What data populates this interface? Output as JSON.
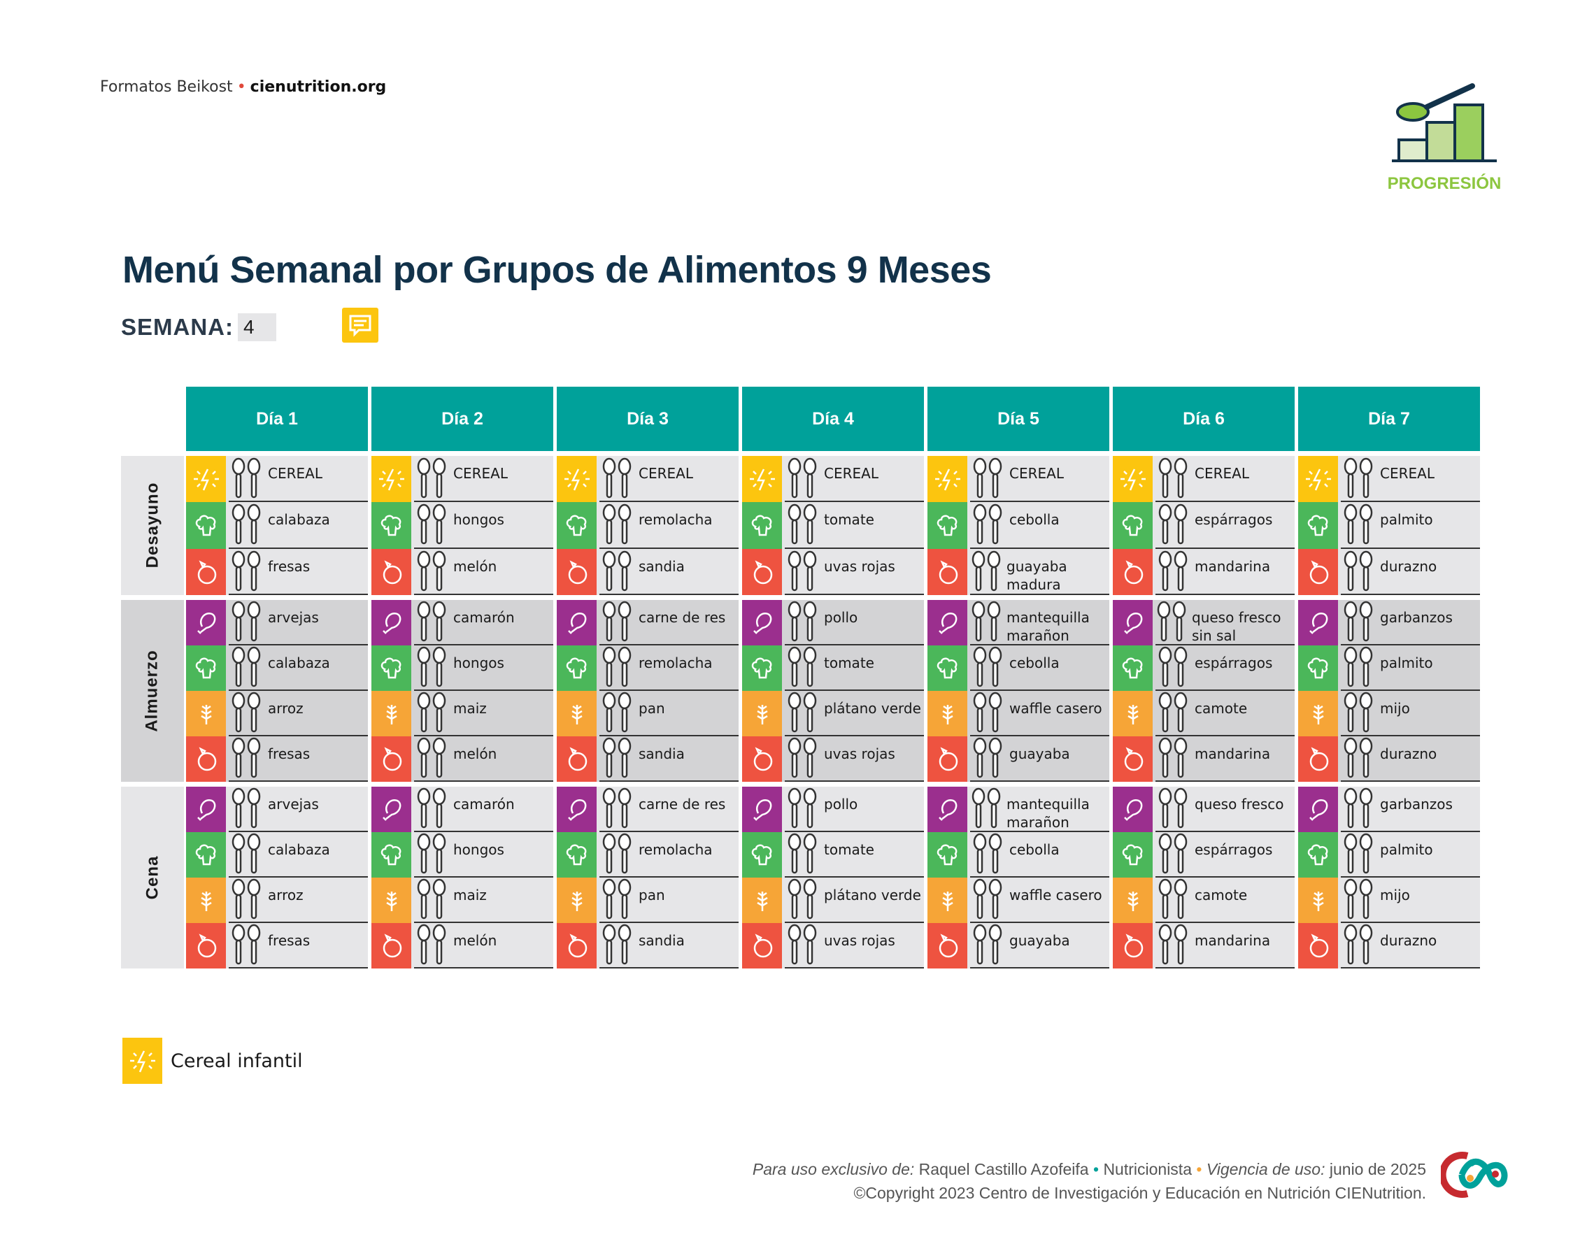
{
  "header": {
    "brand": "Formatos Beikost",
    "site": "cienutrition.org",
    "progression_label": "PROGRESIÓN"
  },
  "title": "Menú Semanal por Grupos de Alimentos 9 Meses",
  "semana": {
    "label": "SEMANA:",
    "value": "4"
  },
  "colors": {
    "header": "#00a19a",
    "cereal": "#fcc50f",
    "vegetable": "#4bb75a",
    "fruit": "#ee5340",
    "protein": "#9b2f8e",
    "grain": "#f6a537"
  },
  "days": [
    "Día 1",
    "Día 2",
    "Día 3",
    "Día 4",
    "Día 5",
    "Día 6",
    "Día 7"
  ],
  "meals": [
    {
      "name": "Desayuno",
      "bg": "#e6e6e8",
      "rows": [
        {
          "group": "cereal",
          "icon": "lightning-icon",
          "items": [
            "CEREAL",
            "CEREAL",
            "CEREAL",
            "CEREAL",
            "CEREAL",
            "CEREAL",
            "CEREAL"
          ]
        },
        {
          "group": "vegetable",
          "icon": "broccoli-icon",
          "items": [
            "calabaza",
            "hongos",
            "remolacha",
            "tomate",
            "cebolla",
            "espárragos",
            "palmito"
          ]
        },
        {
          "group": "fruit",
          "icon": "apple-icon",
          "items": [
            "fresas",
            "melón",
            "sandia",
            "uvas rojas",
            "guayaba madura",
            "mandarina",
            "durazno"
          ]
        }
      ]
    },
    {
      "name": "Almuerzo",
      "bg": "#d3d3d5",
      "rows": [
        {
          "group": "protein",
          "icon": "drumstick-icon",
          "items": [
            "arvejas",
            "camarón",
            "carne de res",
            "pollo",
            "mantequilla marañon",
            "queso fresco sin sal",
            "garbanzos"
          ]
        },
        {
          "group": "vegetable",
          "icon": "broccoli-icon",
          "items": [
            "calabaza",
            "hongos",
            "remolacha",
            "tomate",
            "cebolla",
            "espárragos",
            "palmito"
          ]
        },
        {
          "group": "grain",
          "icon": "wheat-icon",
          "items": [
            "arroz",
            "maiz",
            "pan",
            "plátano verde",
            "waffle casero",
            "camote",
            "mijo"
          ]
        },
        {
          "group": "fruit",
          "icon": "apple-icon",
          "items": [
            "fresas",
            "melón",
            "sandia",
            "uvas rojas",
            "guayaba",
            "mandarina",
            "durazno"
          ]
        }
      ]
    },
    {
      "name": "Cena",
      "bg": "#e6e6e8",
      "rows": [
        {
          "group": "protein",
          "icon": "drumstick-icon",
          "items": [
            "arvejas",
            "camarón",
            "carne de res",
            "pollo",
            "mantequilla marañon",
            "queso fresco",
            "garbanzos"
          ]
        },
        {
          "group": "vegetable",
          "icon": "broccoli-icon",
          "items": [
            "calabaza",
            "hongos",
            "remolacha",
            "tomate",
            "cebolla",
            "espárragos",
            "palmito"
          ]
        },
        {
          "group": "grain",
          "icon": "wheat-icon",
          "items": [
            "arroz",
            "maiz",
            "pan",
            "plátano verde",
            "waffle casero",
            "camote",
            "mijo"
          ]
        },
        {
          "group": "fruit",
          "icon": "apple-icon",
          "items": [
            "fresas",
            "melón",
            "sandia",
            "uvas rojas",
            "guayaba",
            "mandarina",
            "durazno"
          ]
        }
      ]
    }
  ],
  "legend": {
    "label": "Cereal infantil",
    "icon": "lightning-icon"
  },
  "footer": {
    "exclusive_label": "Para uso exclusivo de:",
    "user": "Raquel Castillo Azofeifa",
    "role": "Nutricionista",
    "validity_label": "Vigencia de uso:",
    "validity": "junio de 2025",
    "copyright": "©Copyright 2023 Centro de Investigación y Educación en Nutrición CIENutrition."
  }
}
